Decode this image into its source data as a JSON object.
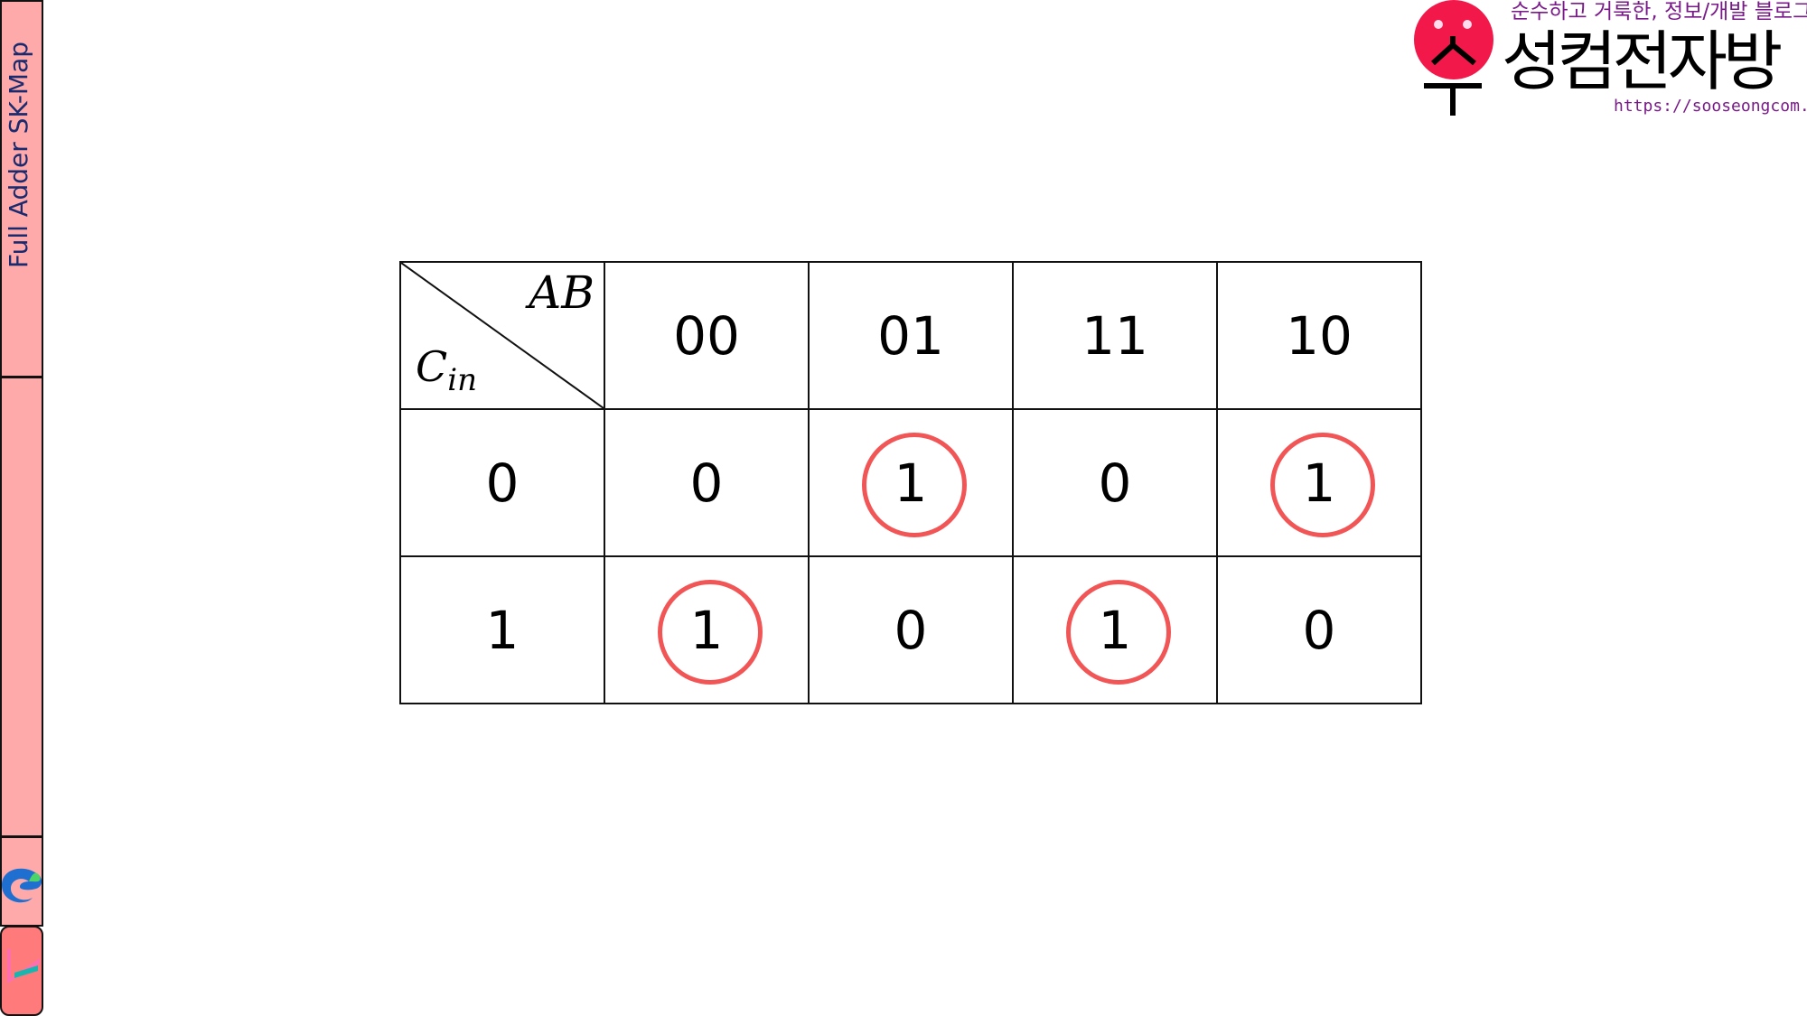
{
  "sidebar": {
    "title": "Full Adder SK-Map",
    "icons": [
      "edge-browser-icon",
      "app-icon"
    ]
  },
  "logo": {
    "tagline": "순수하고 거룩한, 정보/개발 블로그",
    "brand": "성컴전자방",
    "url": "https://sooseongcom.com",
    "mark": "수"
  },
  "kmap": {
    "col_var": "AB",
    "row_var": "C",
    "row_var_sub": "in",
    "col_headers": [
      "00",
      "01",
      "11",
      "10"
    ],
    "rows": [
      {
        "label": "0",
        "cells": [
          "0",
          "1",
          "0",
          "1"
        ],
        "circled": [
          false,
          true,
          false,
          true
        ]
      },
      {
        "label": "1",
        "cells": [
          "1",
          "0",
          "1",
          "0"
        ],
        "circled": [
          true,
          false,
          true,
          false
        ]
      }
    ],
    "circle_color": "#f25555"
  }
}
